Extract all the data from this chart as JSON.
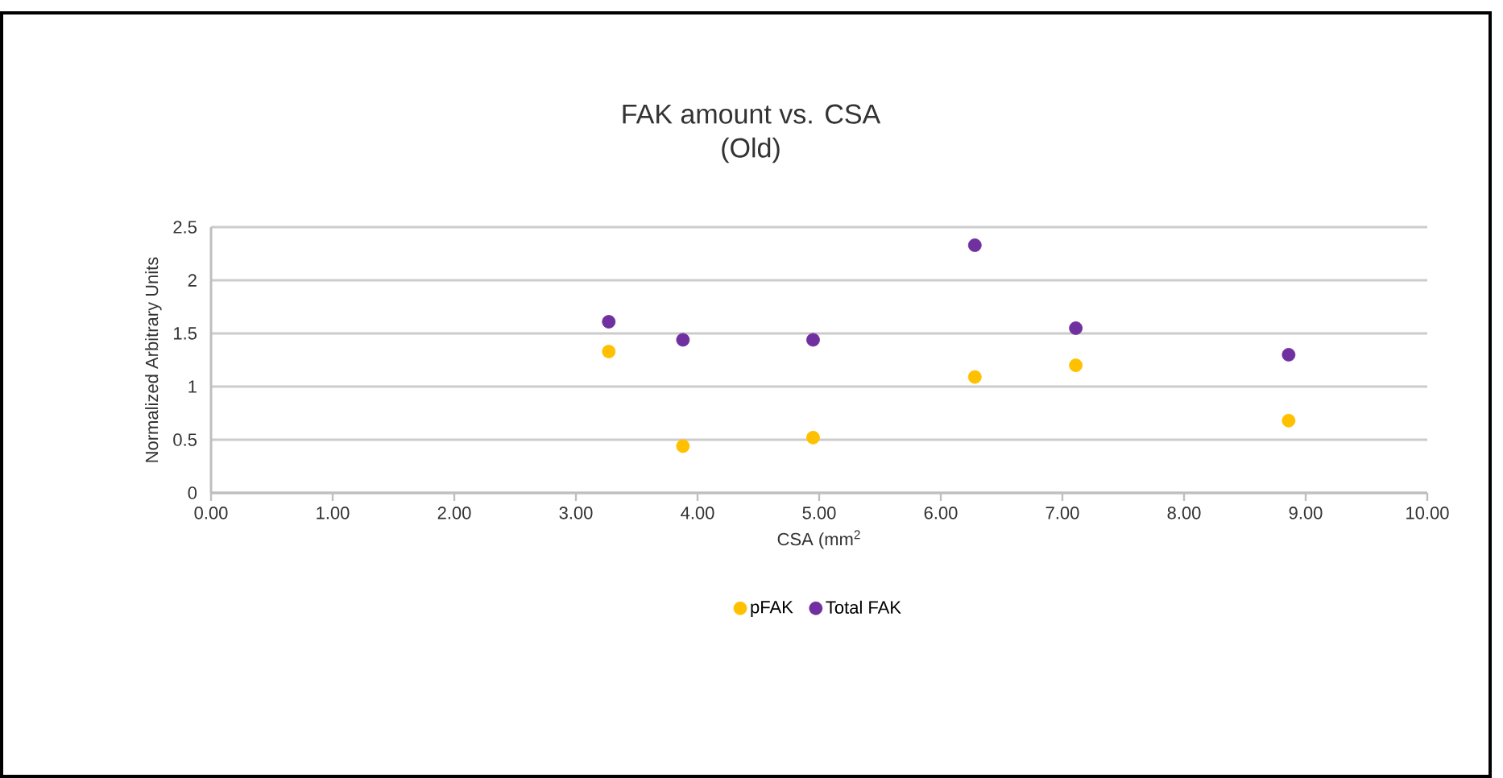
{
  "chart_data": {
    "type": "scatter",
    "title": "FAK amount vs. CSA\n(Old)",
    "xlabel": "CSA (mm$^{2}$",
    "ylabel": "Normalized Arbitrary Units",
    "xlim": [
      0,
      10
    ],
    "xticks": [
      {
        "value": 0,
        "label": "0.00"
      },
      {
        "value": 1,
        "label": "1.00"
      },
      {
        "value": 2,
        "label": "2.00"
      },
      {
        "value": 3,
        "label": "3.00"
      },
      {
        "value": 4,
        "label": "4.00"
      },
      {
        "value": 5,
        "label": "5.00"
      },
      {
        "value": 6,
        "label": "6.00"
      },
      {
        "value": 7,
        "label": "7.00"
      },
      {
        "value": 8,
        "label": "8.00"
      },
      {
        "value": 9,
        "label": "9.00"
      },
      {
        "value": 10,
        "label": "10.00"
      }
    ],
    "ylim": [
      0,
      2.5
    ],
    "yticks": [
      0,
      0.5,
      1,
      1.5,
      2,
      2.5
    ],
    "grid": "y",
    "legend": "bottom",
    "marker": "circle",
    "series": [
      {
        "name": "pFAK",
        "color": "#ffc000",
        "x": [
          3.27,
          3.88,
          4.95,
          6.28,
          7.11,
          8.86
        ],
        "values": [
          1.33,
          0.44,
          0.52,
          1.09,
          1.2,
          0.68
        ]
      },
      {
        "name": "Total FAK",
        "color": "#7030a0",
        "x": [
          3.27,
          3.88,
          4.95,
          6.28,
          7.11,
          8.86
        ],
        "values": [
          1.61,
          1.44,
          1.44,
          2.33,
          1.55,
          1.3
        ]
      }
    ]
  }
}
